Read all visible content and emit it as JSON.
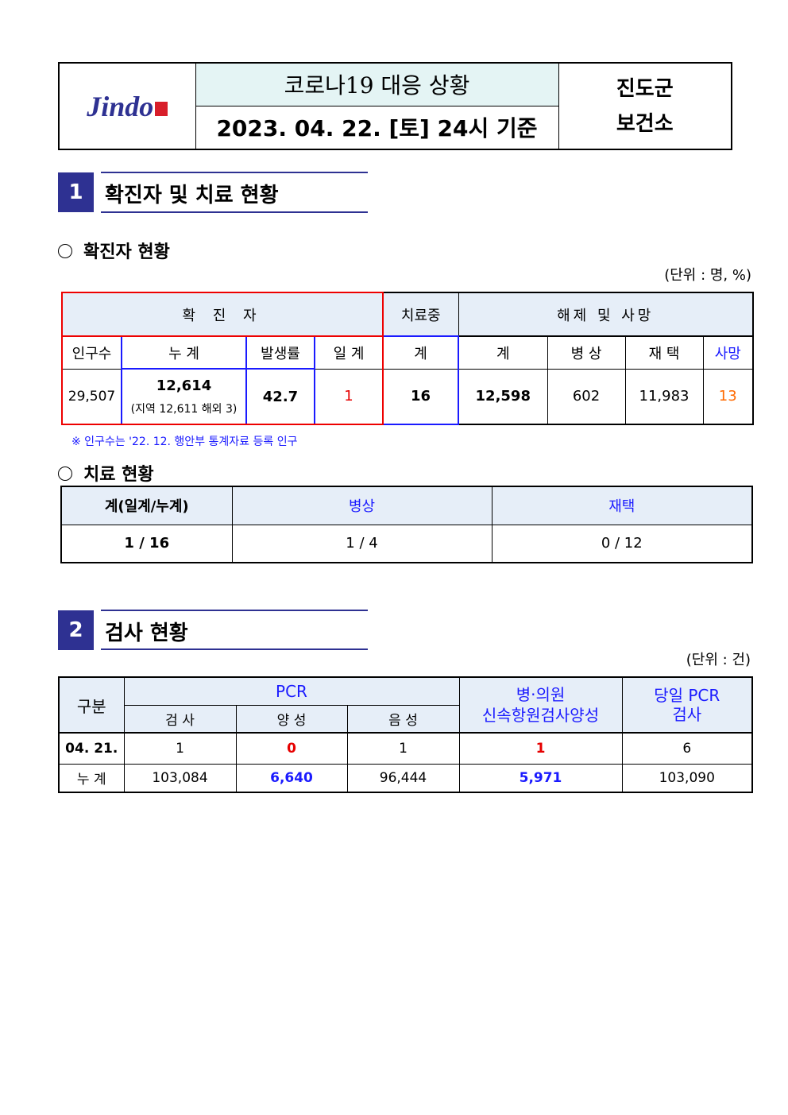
{
  "header": {
    "logo_text": "Jindo",
    "title": "코로나19 대응 상황",
    "date": "2023. 04. 22. [토] 24시 기준",
    "org_line1": "진도군",
    "org_line2": "보건소"
  },
  "section1": {
    "number": "1",
    "title": "확진자 및 치료 현황"
  },
  "confirmed": {
    "subtitle": "확진자 현황",
    "unit": "(단위 : 명, %)",
    "group_confirmed": "확 진 자",
    "group_treating": "치료중",
    "group_released": "해제 및 사망",
    "cols": [
      "인구수",
      "누 계",
      "발생률",
      "일 계",
      "계",
      "계",
      "병 상",
      "재 택",
      "사망"
    ],
    "values": {
      "population": "29,507",
      "cumulative": "12,614",
      "cumulative_detail": "(지역 12,611 해외 3)",
      "rate": "42.7",
      "daily": "1",
      "treating": "16",
      "released_total": "12,598",
      "hospital": "602",
      "home": "11,983",
      "deaths": "13"
    },
    "note": "※ 인구수는 '22. 12. 행안부 통계자료 등록 인구"
  },
  "treatment": {
    "subtitle": "치료 현황",
    "cols": [
      "계(일계/누계)",
      "병상",
      "재택"
    ],
    "values": [
      "1 / 16",
      "1 / 4",
      "0 / 12"
    ]
  },
  "section2": {
    "number": "2",
    "title": "검사 현황"
  },
  "tests": {
    "unit": "(단위 : 건)",
    "h_category": "구분",
    "h_pcr": "PCR",
    "h_pcr_cols": [
      "검 사",
      "양 성",
      "음 성"
    ],
    "h_rapid": [
      "병·의원",
      "신속항원검사양성"
    ],
    "h_daily_pcr": [
      "당일 PCR",
      "검사"
    ],
    "rows": [
      {
        "label": "04. 21.",
        "values": [
          "1",
          "0",
          "1",
          "1",
          "6"
        ]
      },
      {
        "label": "누 계",
        "values": [
          "103,084",
          "6,640",
          "96,444",
          "5,971",
          "103,090"
        ]
      }
    ]
  },
  "colors": {
    "accent": "#2e3192",
    "header_bg": "#e6eef8",
    "title_bg": "#e4f4f4",
    "red": "#e60000",
    "blue": "#1a1aff",
    "orange": "#ff6a00"
  }
}
